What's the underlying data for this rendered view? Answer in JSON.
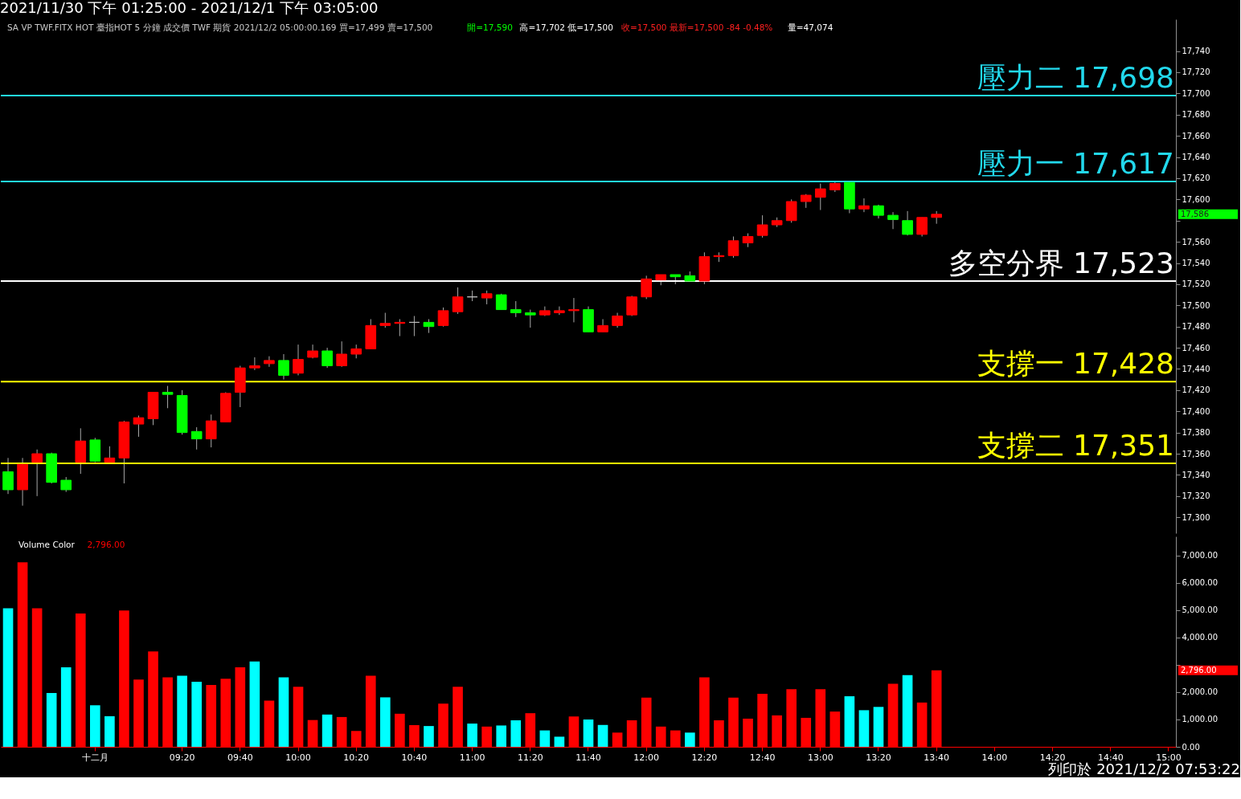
{
  "chart_data": [
    {
      "type": "candlestick",
      "title": "2021/11/30 下午 01:25:00 - 2021/12/1 下午 03:05:00",
      "categories": [
        null,
        null,
        null,
        null,
        null,
        null,
        null,
        null,
        null,
        null,
        null,
        null,
        null,
        null,
        null,
        null,
        null,
        null,
        null,
        null,
        null,
        null,
        null,
        null,
        null,
        null,
        null,
        null,
        null,
        null,
        null,
        null,
        null,
        null,
        null,
        null,
        null,
        null,
        null,
        null,
        null,
        null,
        null,
        null,
        null,
        null,
        null,
        null,
        null,
        null,
        null,
        null,
        null,
        null,
        null,
        null,
        null,
        null,
        null,
        null,
        null,
        null,
        null,
        null,
        null,
        null,
        null,
        null,
        null,
        null,
        null,
        null,
        null,
        null,
        null,
        null,
        null,
        null,
        null,
        null,
        null
      ],
      "ohlc": [
        [
          17343,
          17356,
          17322,
          17326
        ],
        [
          17326,
          17356,
          17311,
          17350
        ],
        [
          17352,
          17364,
          17320,
          17360
        ],
        [
          17360,
          17361,
          17332,
          17333
        ],
        [
          17335,
          17338,
          17324,
          17326
        ],
        [
          17352,
          17384,
          17341,
          17372
        ],
        [
          17373,
          17375,
          17352,
          17353
        ],
        [
          17352,
          17367,
          17352,
          17356
        ],
        [
          17356,
          17391,
          17332,
          17390
        ],
        [
          17388,
          17396,
          17376,
          17394
        ],
        [
          17393,
          17418,
          17387,
          17418
        ],
        [
          17418,
          17424,
          17403,
          17416
        ],
        [
          17415,
          17420,
          17378,
          17380
        ],
        [
          17381,
          17385,
          17364,
          17374
        ],
        [
          17374,
          17397,
          17366,
          17391
        ],
        [
          17390,
          17418,
          17390,
          17417
        ],
        [
          17418,
          17443,
          17404,
          17441
        ],
        [
          17441,
          17451,
          17439,
          17443
        ],
        [
          17445,
          17452,
          17442,
          17448
        ],
        [
          17448,
          17454,
          17430,
          17434
        ],
        [
          17436,
          17463,
          17434,
          17449
        ],
        [
          17451,
          17463,
          17450,
          17457
        ],
        [
          17457,
          17460,
          17441,
          17443
        ],
        [
          17443,
          17466,
          17442,
          17454
        ],
        [
          17454,
          17463,
          17450,
          17459
        ],
        [
          17459,
          17487,
          17459,
          17481
        ],
        [
          17481,
          17493,
          17479,
          17483
        ],
        [
          17483,
          17487,
          17471,
          17484
        ],
        [
          17484,
          17490,
          17471,
          17484
        ],
        [
          17484,
          17487,
          17474,
          17480
        ],
        [
          17481,
          17498,
          17480,
          17495
        ],
        [
          17494,
          17517,
          17492,
          17508
        ],
        [
          17508,
          17514,
          17504,
          17508
        ],
        [
          17507,
          17514,
          17501,
          17511
        ],
        [
          17510,
          17511,
          17496,
          17496
        ],
        [
          17496,
          17504,
          17489,
          17493
        ],
        [
          17493,
          17496,
          17479,
          17491
        ],
        [
          17491,
          17499,
          17490,
          17495
        ],
        [
          17493,
          17499,
          17491,
          17495
        ],
        [
          17495,
          17507,
          17484,
          17496
        ],
        [
          17496,
          17499,
          17475,
          17475
        ],
        [
          17475,
          17487,
          17475,
          17481
        ],
        [
          17481,
          17493,
          17479,
          17490
        ],
        [
          17491,
          17509,
          17490,
          17508
        ],
        [
          17508,
          17528,
          17506,
          17525
        ],
        [
          17524,
          17529,
          17519,
          17529
        ],
        [
          17529,
          17529,
          17520,
          17527
        ],
        [
          17528,
          17532,
          17523,
          17523
        ],
        [
          17523,
          17550,
          17520,
          17546
        ],
        [
          17546,
          17550,
          17541,
          17547
        ],
        [
          17547,
          17565,
          17545,
          17561
        ],
        [
          17559,
          17568,
          17555,
          17565
        ],
        [
          17566,
          17585,
          17564,
          17576
        ],
        [
          17576,
          17583,
          17574,
          17580
        ],
        [
          17580,
          17600,
          17578,
          17598
        ],
        [
          17598,
          17605,
          17592,
          17604
        ],
        [
          17602,
          17615,
          17590,
          17610
        ],
        [
          17609,
          17617,
          17607,
          17615
        ],
        [
          17616,
          17617,
          17587,
          17591
        ],
        [
          17591,
          17601,
          17588,
          17594
        ],
        [
          17594,
          17595,
          17582,
          17585
        ],
        [
          17585,
          17588,
          17572,
          17581
        ],
        [
          17580,
          17589,
          17566,
          17567
        ],
        [
          17567,
          17583,
          17565,
          17583
        ],
        [
          17583,
          17589,
          17577,
          17586
        ],
        null,
        null,
        null,
        null,
        null,
        null,
        null,
        null,
        null,
        null,
        null,
        null,
        null,
        null,
        null,
        null
      ],
      "colors": [
        "#00ff00",
        "#ff0000",
        "#ff0000",
        "#00ff00",
        "#00ff00",
        "#ff0000",
        "#00ff00",
        "#ff0000",
        "#ff0000",
        "#ff0000",
        "#ff0000",
        "#00ff00",
        "#00ff00",
        "#00ff00",
        "#ff0000",
        "#ff0000",
        "#ff0000",
        "#ff0000",
        "#ff0000",
        "#00ff00",
        "#ff0000",
        "#ff0000",
        "#00ff00",
        "#ff0000",
        "#ff0000",
        "#ff0000",
        "#ff0000",
        "#ff0000",
        "#c0c0c0",
        "#00ff00",
        "#ff0000",
        "#ff0000",
        "#c0c0c0",
        "#ff0000",
        "#00ff00",
        "#00ff00",
        "#00ff00",
        "#ff0000",
        "#ff0000",
        "#ff0000",
        "#00ff00",
        "#ff0000",
        "#ff0000",
        "#ff0000",
        "#ff0000",
        "#ff0000",
        "#00ff00",
        "#00ff00",
        "#ff0000",
        "#ff0000",
        "#ff0000",
        "#ff0000",
        "#ff0000",
        "#ff0000",
        "#ff0000",
        "#ff0000",
        "#ff0000",
        "#ff0000",
        "#00ff00",
        "#ff0000",
        "#00ff00",
        "#00ff00",
        "#00ff00",
        "#ff0000",
        "#ff0000",
        null,
        null,
        null,
        null,
        null,
        null,
        null,
        null,
        null,
        null,
        null,
        null,
        null,
        null,
        null,
        null
      ],
      "ylim": [
        17285,
        17770
      ],
      "yticks": [
        {
          "value": 17300,
          "label": "17,300"
        },
        {
          "value": 17320,
          "label": "17,320"
        },
        {
          "value": 17340,
          "label": "17,340"
        },
        {
          "value": 17360,
          "label": "17,360"
        },
        {
          "value": 17380,
          "label": "17,380"
        },
        {
          "value": 17400,
          "label": "17,400"
        },
        {
          "value": 17420,
          "label": "17,420"
        },
        {
          "value": 17440,
          "label": "17,440"
        },
        {
          "value": 17460,
          "label": "17,460"
        },
        {
          "value": 17480,
          "label": "17,480"
        },
        {
          "value": 17500,
          "label": "17,500"
        },
        {
          "value": 17520,
          "label": "17,520"
        },
        {
          "value": 17540,
          "label": "17,540"
        },
        {
          "value": 17560,
          "label": "17,560"
        },
        {
          "value": 17580,
          "label": null
        },
        {
          "value": 17600,
          "label": "17,600"
        },
        {
          "value": 17620,
          "label": "17,620"
        },
        {
          "value": 17640,
          "label": "17,640"
        },
        {
          "value": 17660,
          "label": "17,660"
        },
        {
          "value": 17680,
          "label": "17,680"
        },
        {
          "value": 17700,
          "label": "17,700"
        },
        {
          "value": 17720,
          "label": "17,720"
        },
        {
          "value": 17740,
          "label": "17,740"
        }
      ],
      "tick_labels": "y",
      "ref_lines": [
        {
          "axis": "y",
          "value": 17698,
          "label": "壓力二 17,698",
          "color": "#22d8ec"
        },
        {
          "axis": "y",
          "value": 17617,
          "label": "壓力一 17,617",
          "color": "#22d8ec"
        },
        {
          "axis": "y",
          "value": 17523,
          "label": "多空分界 17,523",
          "color": "#ffffff"
        },
        {
          "axis": "y",
          "value": 17428,
          "label": "支撐一 17,428",
          "color": "#ffff00"
        },
        {
          "axis": "y",
          "value": 17351,
          "label": "支撐二 17,351",
          "color": "#ffff00"
        }
      ],
      "annotations": [
        "SA VP TWF.FITX HOT 臺指HOT 5 分鐘 成交價 TWF 期貨 2021/12/2 05:00:00.169 買=17,499 賣=17,500",
        "開=17,590",
        "高=17,702 低=17,500",
        "收=17,500 最新=17,500 -84 -0.48%",
        "量=47,074",
        "17,586"
      ]
    },
    {
      "type": "bar",
      "categories": [
        null,
        null,
        null,
        null,
        null,
        null,
        "十二月",
        null,
        null,
        null,
        null,
        null,
        "09:20",
        null,
        null,
        null,
        "09:40",
        null,
        null,
        null,
        "10:00",
        null,
        null,
        null,
        "10:20",
        null,
        null,
        null,
        "10:40",
        null,
        null,
        null,
        "11:00",
        null,
        null,
        null,
        "11:20",
        null,
        null,
        null,
        "11:40",
        null,
        null,
        null,
        "12:00",
        null,
        null,
        null,
        "12:20",
        null,
        null,
        null,
        "12:40",
        null,
        null,
        null,
        "13:00",
        null,
        null,
        null,
        "13:20",
        null,
        null,
        null,
        "13:40",
        null,
        null,
        null,
        "14:00",
        null,
        null,
        null,
        "14:20",
        null,
        null,
        null,
        "14:40",
        null,
        null,
        null,
        "15:00"
      ],
      "values": [
        5070,
        6750,
        5070,
        1970,
        2910,
        4880,
        1520,
        1120,
        4990,
        2460,
        3490,
        2540,
        2600,
        2380,
        2260,
        2490,
        2910,
        3120,
        1690,
        2540,
        2200,
        980,
        1180,
        1090,
        580,
        2600,
        1810,
        1210,
        790,
        760,
        1580,
        2200,
        850,
        740,
        780,
        970,
        1230,
        600,
        370,
        1110,
        1000,
        800,
        520,
        970,
        1800,
        740,
        600,
        520,
        2540,
        970,
        1800,
        1030,
        1940,
        1150,
        2110,
        1060,
        2110,
        1290,
        1850,
        1340,
        1460,
        2310,
        2620,
        1620,
        2796,
        null,
        null,
        null,
        null,
        null,
        null,
        null,
        null,
        null,
        null,
        null,
        null,
        null,
        null,
        null,
        null
      ],
      "colors": [
        "#00ffff",
        "#ff0000",
        "#ff0000",
        "#00ffff",
        "#00ffff",
        "#ff0000",
        "#00ffff",
        "#00ffff",
        "#ff0000",
        "#ff0000",
        "#ff0000",
        "#ff0000",
        "#00ffff",
        "#00ffff",
        "#ff0000",
        "#ff0000",
        "#ff0000",
        "#00ffff",
        "#ff0000",
        "#00ffff",
        "#ff0000",
        "#ff0000",
        "#00ffff",
        "#ff0000",
        "#ff0000",
        "#ff0000",
        "#00ffff",
        "#ff0000",
        "#ff0000",
        "#00ffff",
        "#ff0000",
        "#ff0000",
        "#00ffff",
        "#ff0000",
        "#00ffff",
        "#00ffff",
        "#ff0000",
        "#00ffff",
        "#00ffff",
        "#ff0000",
        "#00ffff",
        "#00ffff",
        "#ff0000",
        "#ff0000",
        "#ff0000",
        "#ff0000",
        "#ff0000",
        "#00ffff",
        "#ff0000",
        "#ff0000",
        "#ff0000",
        "#ff0000",
        "#ff0000",
        "#ff0000",
        "#ff0000",
        "#ff0000",
        "#ff0000",
        "#ff0000",
        "#00ffff",
        "#00ffff",
        "#00ffff",
        "#ff0000",
        "#00ffff",
        "#ff0000",
        "#ff0000",
        null,
        null,
        null,
        null,
        null,
        null,
        null,
        null,
        null,
        null,
        null,
        null,
        null,
        null,
        null,
        null
      ],
      "ylim": [
        0,
        7700
      ],
      "yticks": [
        {
          "value": 0,
          "label": "0.00"
        },
        {
          "value": 1000,
          "label": "1,000.00"
        },
        {
          "value": 2000,
          "label": "2,000.00"
        },
        {
          "value": 3000,
          "label": null
        },
        {
          "value": 4000,
          "label": "4,000.00"
        },
        {
          "value": 5000,
          "label": "5,000.00"
        },
        {
          "value": 6000,
          "label": "6,000.00"
        },
        {
          "value": 7000,
          "label": "7,000.00"
        }
      ],
      "annotations": [
        "Volume Color",
        "2,796.00",
        "2,796.00",
        "列印於 2021/12/2 07:53:22"
      ]
    }
  ]
}
